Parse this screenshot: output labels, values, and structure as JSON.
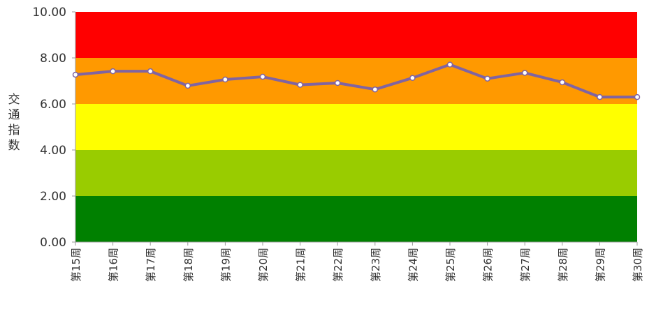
{
  "chart_data": {
    "type": "line",
    "title": "",
    "xlabel": "",
    "ylabel": "交通指数",
    "ylim": [
      0,
      10
    ],
    "yticks": [
      "0.00",
      "2.00",
      "4.00",
      "6.00",
      "8.00",
      "10.00"
    ],
    "categories": [
      "第15周",
      "第16周",
      "第17周",
      "第18周",
      "第19周",
      "第20周",
      "第21周",
      "第22周",
      "第23周",
      "第24周",
      "第25周",
      "第26周",
      "第27周",
      "第28周",
      "第29周",
      "第30周"
    ],
    "values": [
      7.27,
      7.42,
      7.42,
      6.79,
      7.06,
      7.18,
      6.83,
      6.91,
      6.63,
      7.13,
      7.71,
      7.1,
      7.35,
      6.94,
      6.3,
      6.3
    ],
    "bands": [
      {
        "from": 0,
        "to": 2,
        "color": "#008000"
      },
      {
        "from": 2,
        "to": 4,
        "color": "#99cc00"
      },
      {
        "from": 4,
        "to": 6,
        "color": "#ffff00"
      },
      {
        "from": 6,
        "to": 8,
        "color": "#ff9900"
      },
      {
        "from": 8,
        "to": 10,
        "color": "#ff0000"
      }
    ],
    "line_color": "#8064a2",
    "grid": false,
    "legend": "none"
  }
}
